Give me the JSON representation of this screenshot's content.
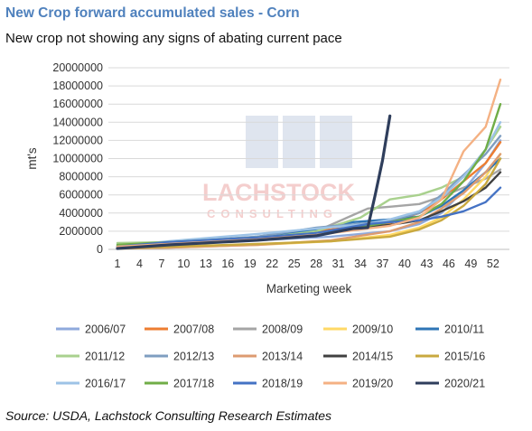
{
  "title": "New Crop forward accumulated sales - Corn",
  "subtitle": "New crop not showing any signs of abating current pace",
  "source": "Source: USDA, Lachstock Consulting Research Estimates",
  "watermark": {
    "name": "LACHSTOCK",
    "tagline": "CONSULTING"
  },
  "chart_data": {
    "type": "line",
    "xlabel": "Marketing week",
    "ylabel": "mt's",
    "ylim": [
      0,
      20000000
    ],
    "yticks": [
      0,
      2000000,
      4000000,
      6000000,
      8000000,
      10000000,
      12000000,
      14000000,
      16000000,
      18000000,
      20000000
    ],
    "xlim": [
      1,
      53
    ],
    "xticks": [
      1,
      4,
      7,
      10,
      13,
      16,
      19,
      22,
      25,
      28,
      31,
      34,
      37,
      40,
      43,
      46,
      49,
      52
    ],
    "grid": "horizontal",
    "legend_position": "bottom",
    "series": [
      {
        "name": "2006/07",
        "color": "#8faadc",
        "points": [
          [
            1,
            600000
          ],
          [
            8,
            700000
          ],
          [
            20,
            1000000
          ],
          [
            30,
            1400000
          ],
          [
            38,
            2000000
          ],
          [
            42,
            2800000
          ],
          [
            45,
            4000000
          ],
          [
            48,
            6500000
          ],
          [
            51,
            9500000
          ],
          [
            53,
            12000000
          ]
        ]
      },
      {
        "name": "2007/08",
        "color": "#ed7d31",
        "points": [
          [
            1,
            400000
          ],
          [
            8,
            700000
          ],
          [
            20,
            1300000
          ],
          [
            30,
            2200000
          ],
          [
            38,
            2900000
          ],
          [
            42,
            4000000
          ],
          [
            45,
            5500000
          ],
          [
            48,
            7500000
          ],
          [
            51,
            9500000
          ],
          [
            53,
            11800000
          ]
        ]
      },
      {
        "name": "2008/09",
        "color": "#a5a5a5",
        "points": [
          [
            1,
            300000
          ],
          [
            8,
            600000
          ],
          [
            20,
            1200000
          ],
          [
            28,
            2000000
          ],
          [
            35,
            4500000
          ],
          [
            38,
            4700000
          ],
          [
            42,
            5000000
          ],
          [
            45,
            5800000
          ],
          [
            48,
            6800000
          ],
          [
            51,
            7800000
          ],
          [
            53,
            8800000
          ]
        ]
      },
      {
        "name": "2009/10",
        "color": "#ffd966",
        "points": [
          [
            1,
            100000
          ],
          [
            8,
            200000
          ],
          [
            20,
            500000
          ],
          [
            30,
            900000
          ],
          [
            38,
            1600000
          ],
          [
            42,
            2400000
          ],
          [
            45,
            3500000
          ],
          [
            48,
            5500000
          ],
          [
            51,
            8000000
          ],
          [
            53,
            10500000
          ]
        ]
      },
      {
        "name": "2010/11",
        "color": "#2e75b6",
        "points": [
          [
            1,
            200000
          ],
          [
            8,
            600000
          ],
          [
            20,
            1400000
          ],
          [
            28,
            2200000
          ],
          [
            33,
            3000000
          ],
          [
            38,
            3300000
          ],
          [
            42,
            3600000
          ],
          [
            45,
            4800000
          ],
          [
            48,
            6500000
          ],
          [
            51,
            8500000
          ],
          [
            53,
            10000000
          ]
        ]
      },
      {
        "name": "2011/12",
        "color": "#a9d18e",
        "points": [
          [
            1,
            700000
          ],
          [
            8,
            800000
          ],
          [
            20,
            1200000
          ],
          [
            28,
            2000000
          ],
          [
            34,
            3500000
          ],
          [
            38,
            5500000
          ],
          [
            42,
            6000000
          ],
          [
            45,
            6800000
          ],
          [
            48,
            8000000
          ],
          [
            51,
            11000000
          ],
          [
            53,
            13500000
          ]
        ]
      },
      {
        "name": "2012/13",
        "color": "#7f9ec0",
        "points": [
          [
            1,
            400000
          ],
          [
            8,
            800000
          ],
          [
            20,
            1400000
          ],
          [
            28,
            2400000
          ],
          [
            35,
            2900000
          ],
          [
            38,
            3200000
          ],
          [
            42,
            4000000
          ],
          [
            45,
            6000000
          ],
          [
            48,
            8200000
          ],
          [
            51,
            10500000
          ],
          [
            53,
            12500000
          ]
        ]
      },
      {
        "name": "2013/14",
        "color": "#dd9b71",
        "points": [
          [
            1,
            100000
          ],
          [
            8,
            200000
          ],
          [
            20,
            500000
          ],
          [
            30,
            1000000
          ],
          [
            38,
            2000000
          ],
          [
            42,
            3000000
          ],
          [
            45,
            4500000
          ],
          [
            48,
            6200000
          ],
          [
            51,
            8500000
          ],
          [
            53,
            10500000
          ]
        ]
      },
      {
        "name": "2014/15",
        "color": "#404040",
        "points": [
          [
            1,
            300000
          ],
          [
            8,
            600000
          ],
          [
            20,
            1100000
          ],
          [
            28,
            1800000
          ],
          [
            35,
            2500000
          ],
          [
            38,
            2700000
          ],
          [
            42,
            3200000
          ],
          [
            45,
            4200000
          ],
          [
            48,
            5300000
          ],
          [
            51,
            6800000
          ],
          [
            53,
            8500000
          ]
        ]
      },
      {
        "name": "2015/16",
        "color": "#c9a93f",
        "points": [
          [
            1,
            100000
          ],
          [
            8,
            300000
          ],
          [
            20,
            600000
          ],
          [
            30,
            900000
          ],
          [
            38,
            1400000
          ],
          [
            42,
            2200000
          ],
          [
            45,
            3200000
          ],
          [
            48,
            4800000
          ],
          [
            51,
            7200000
          ],
          [
            53,
            10000000
          ]
        ]
      },
      {
        "name": "2016/17",
        "color": "#9dc3e6",
        "points": [
          [
            1,
            300000
          ],
          [
            8,
            900000
          ],
          [
            20,
            1700000
          ],
          [
            28,
            2300000
          ],
          [
            35,
            2800000
          ],
          [
            38,
            3300000
          ],
          [
            42,
            4200000
          ],
          [
            45,
            5700000
          ],
          [
            48,
            8000000
          ],
          [
            51,
            11000000
          ],
          [
            53,
            14000000
          ]
        ]
      },
      {
        "name": "2017/18",
        "color": "#70ad47",
        "points": [
          [
            1,
            500000
          ],
          [
            8,
            800000
          ],
          [
            20,
            1300000
          ],
          [
            28,
            1800000
          ],
          [
            35,
            2600000
          ],
          [
            38,
            3000000
          ],
          [
            42,
            3600000
          ],
          [
            45,
            5000000
          ],
          [
            48,
            7500000
          ],
          [
            51,
            11000000
          ],
          [
            53,
            16000000
          ]
        ]
      },
      {
        "name": "2018/19",
        "color": "#4472c4",
        "points": [
          [
            1,
            300000
          ],
          [
            8,
            800000
          ],
          [
            20,
            1300000
          ],
          [
            28,
            1800000
          ],
          [
            35,
            2800000
          ],
          [
            38,
            3000000
          ],
          [
            42,
            3200000
          ],
          [
            45,
            3600000
          ],
          [
            48,
            4200000
          ],
          [
            51,
            5200000
          ],
          [
            53,
            6800000
          ]
        ]
      },
      {
        "name": "2019/20",
        "color": "#f4b183",
        "points": [
          [
            1,
            300000
          ],
          [
            8,
            600000
          ],
          [
            20,
            1100000
          ],
          [
            28,
            1600000
          ],
          [
            35,
            2300000
          ],
          [
            38,
            2600000
          ],
          [
            42,
            3500000
          ],
          [
            45,
            5500000
          ],
          [
            48,
            10800000
          ],
          [
            51,
            13500000
          ],
          [
            53,
            18700000
          ]
        ]
      },
      {
        "name": "2020/21",
        "color": "#2f3e5c",
        "points": [
          [
            1,
            100000
          ],
          [
            8,
            500000
          ],
          [
            20,
            1000000
          ],
          [
            28,
            1500000
          ],
          [
            33,
            2300000
          ],
          [
            35,
            2400000
          ],
          [
            36,
            6000000
          ],
          [
            37,
            9800000
          ],
          [
            38,
            14700000
          ]
        ]
      }
    ]
  }
}
